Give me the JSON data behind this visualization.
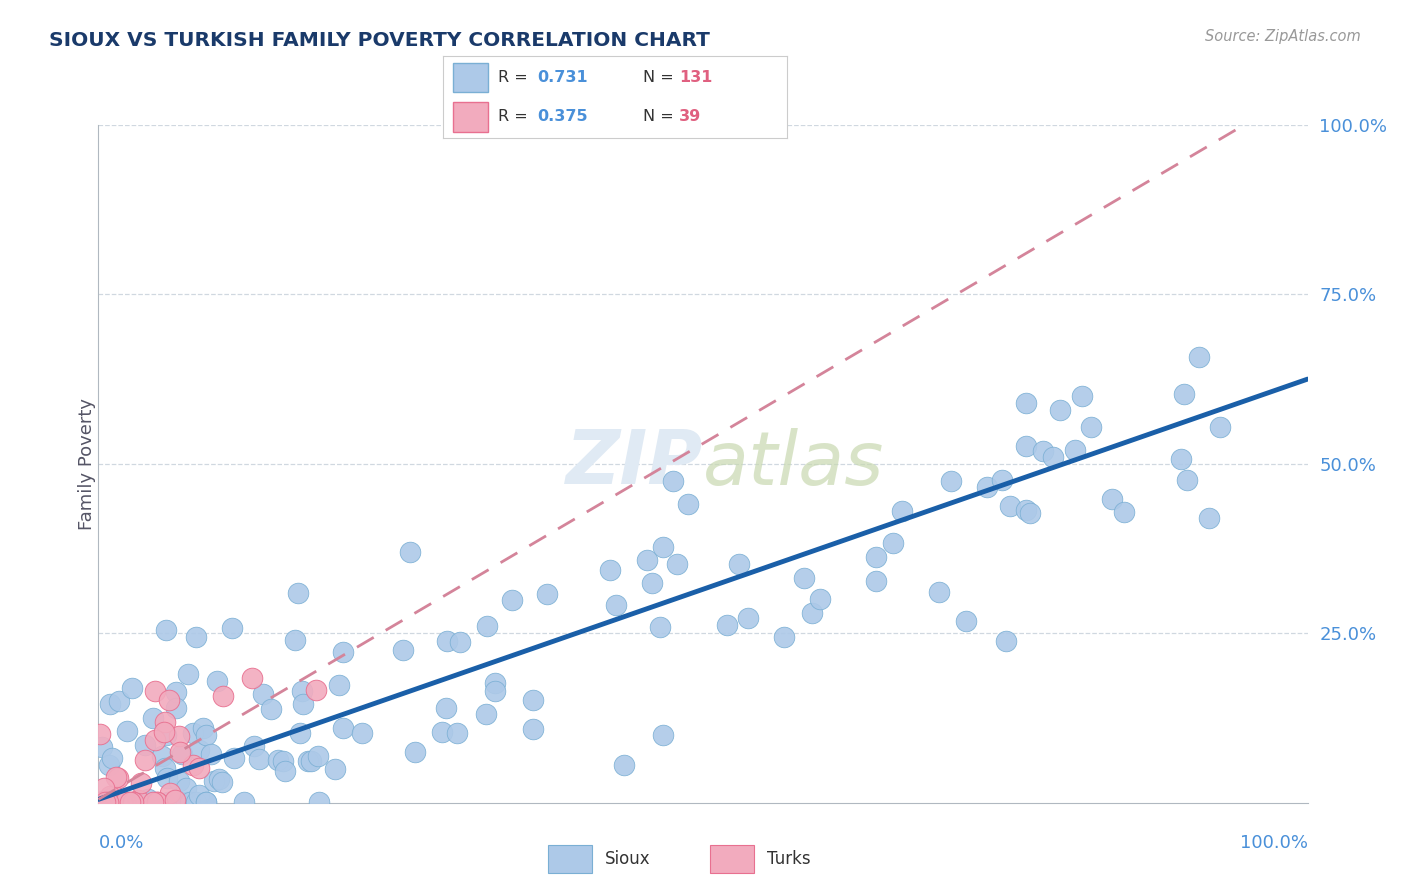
{
  "title": "SIOUX VS TURKISH FAMILY POVERTY CORRELATION CHART",
  "source": "Source: ZipAtlas.com",
  "ylabel": "Family Poverty",
  "sioux_R": 0.731,
  "sioux_N": 131,
  "turks_R": 0.375,
  "turks_N": 39,
  "sioux_color": "#adc9e8",
  "sioux_edge_color": "#7aafd4",
  "turks_color": "#f2abbe",
  "turks_edge_color": "#e87090",
  "sioux_line_color": "#1a5fa8",
  "turks_line_color": "#d4849a",
  "title_color": "#1a3a6a",
  "axis_label_color": "#4a90d9",
  "legend_r_color": "#4a90d9",
  "legend_n_color": "#e06080",
  "watermark_color": "#e0eaf4",
  "background_color": "#ffffff",
  "grid_color": "#d0d8e0",
  "sioux_line_slope": 0.62,
  "sioux_line_intercept": 0.005,
  "turks_line_slope": 1.05,
  "turks_line_intercept": 0.005
}
